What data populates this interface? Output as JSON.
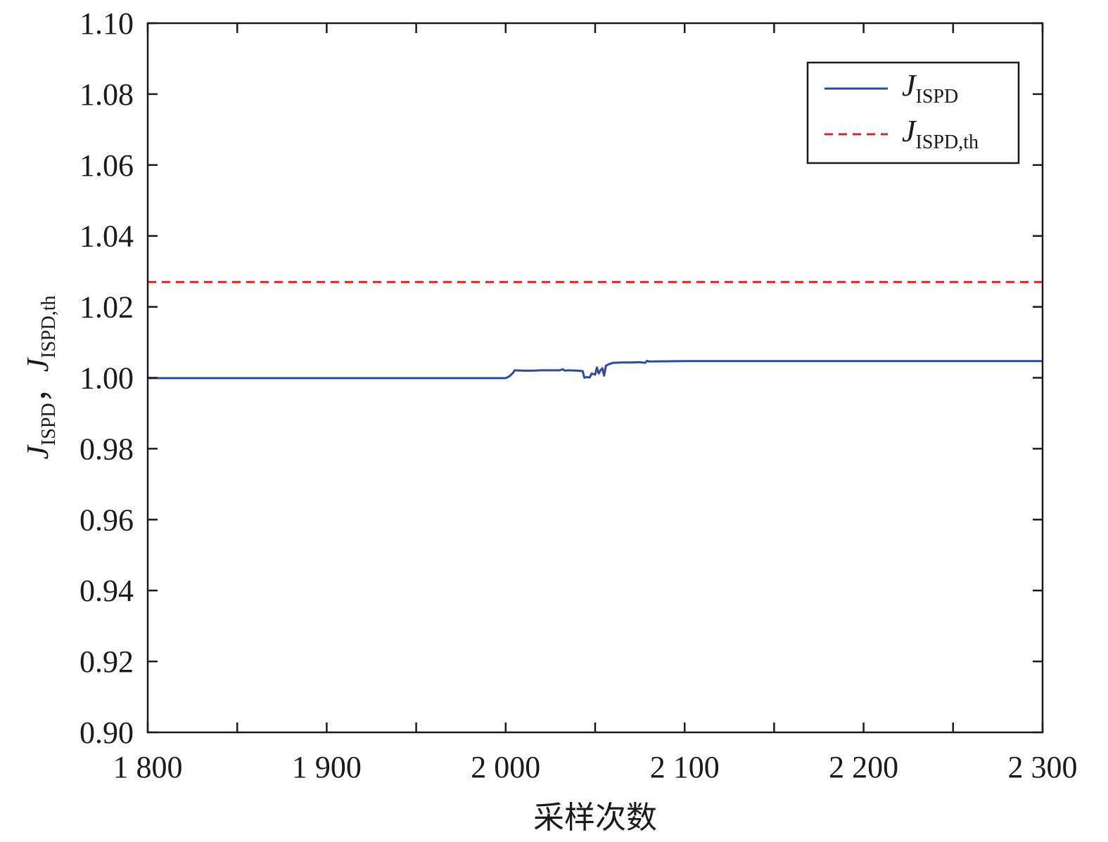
{
  "chart_data": {
    "type": "line",
    "xlabel": "采样次数",
    "ylabel_parts": {
      "j1": "J",
      "sub1": "ISPD",
      "sep": "，",
      "j2": "J",
      "sub2": "ISPD,th"
    },
    "xlim": [
      1800,
      2300
    ],
    "ylim": [
      0.9,
      1.1
    ],
    "x_ticks": [
      1800,
      1900,
      2000,
      2100,
      2200,
      2300
    ],
    "x_tick_labels": [
      "1 800",
      "1 900",
      "2 000",
      "2 100",
      "2 200",
      "2 300"
    ],
    "x_minor_ticks": [
      1850,
      1950,
      2050,
      2150,
      2250
    ],
    "y_ticks": [
      0.9,
      0.92,
      0.94,
      0.96,
      0.98,
      1.0,
      1.02,
      1.04,
      1.06,
      1.08,
      1.1
    ],
    "y_tick_labels": [
      "0.90",
      "0.92",
      "0.94",
      "0.96",
      "0.98",
      "1.00",
      "1.02",
      "1.04",
      "1.06",
      "1.08",
      "1.10"
    ],
    "grid": false,
    "legend_position": "top-right",
    "series": [
      {
        "key": "j_ispd",
        "legend_main": "J",
        "legend_sub": "ISPD",
        "color": "#2e4a9e",
        "style": "solid",
        "x": [
          1800,
          1801,
          2000,
          2002,
          2004,
          2005,
          2010,
          2015,
          2020,
          2025,
          2030,
          2032,
          2033,
          2035,
          2040,
          2043,
          2044,
          2045,
          2047,
          2048,
          2050,
          2051,
          2052,
          2053,
          2054,
          2055,
          2056,
          2058,
          2060,
          2065,
          2070,
          2075,
          2078,
          2079,
          2080,
          2082,
          2100,
          2300
        ],
        "y": [
          1.0,
          0.9999,
          0.9999,
          1.0004,
          1.0013,
          1.0021,
          1.002,
          1.002,
          1.0021,
          1.0021,
          1.0021,
          1.0024,
          1.002,
          1.0021,
          1.002,
          1.0019,
          1.0,
          1.0002,
          1.0001,
          1.0012,
          1.0009,
          1.0029,
          1.0012,
          1.0021,
          1.0027,
          1.0006,
          1.0034,
          1.0039,
          1.0042,
          1.0043,
          1.0043,
          1.0044,
          1.0042,
          1.0048,
          1.0046,
          1.0046,
          1.0047,
          1.0047
        ]
      },
      {
        "key": "j_ispd_th",
        "legend_main": "J",
        "legend_sub": "ISPD,th",
        "color": "#d62728",
        "style": "dashed",
        "x": [
          1800,
          2300
        ],
        "y": [
          1.027,
          1.027
        ]
      }
    ]
  }
}
